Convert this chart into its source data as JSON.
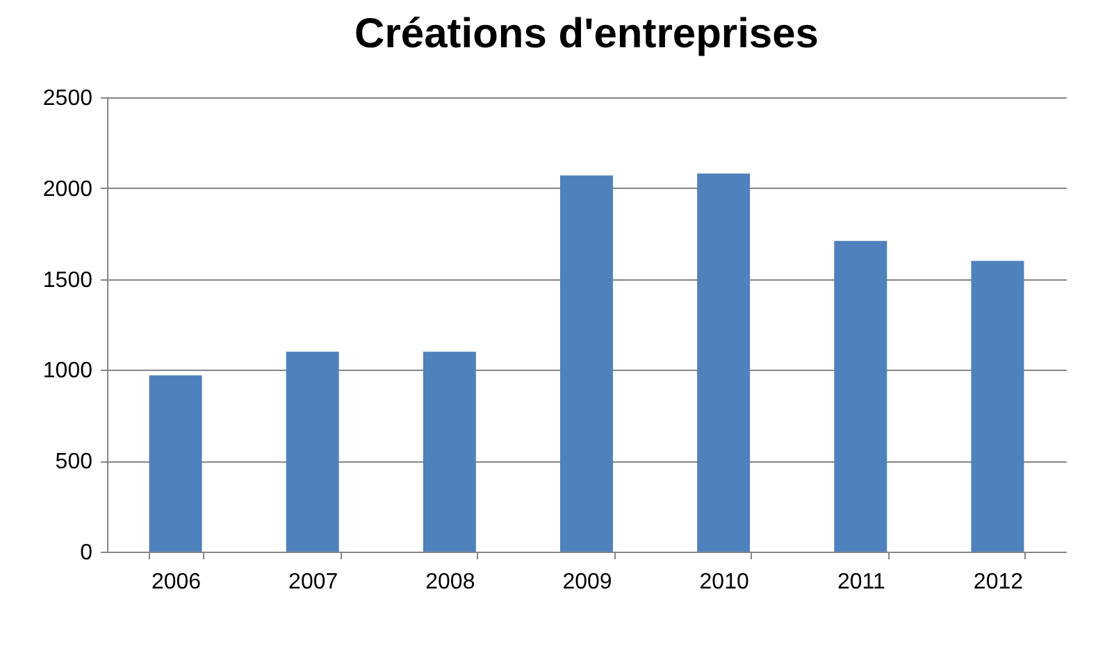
{
  "chart_data": {
    "type": "bar",
    "title": "Créations d'entreprises",
    "categories": [
      "2006",
      "2007",
      "2008",
      "2009",
      "2010",
      "2011",
      "2012"
    ],
    "values": [
      970,
      1100,
      1100,
      2070,
      2080,
      1710,
      1600
    ],
    "color": "#4f81bd",
    "ylim": [
      0,
      2500
    ],
    "yticks": [
      0,
      500,
      1000,
      1500,
      2000,
      2500
    ],
    "grid": "y"
  }
}
